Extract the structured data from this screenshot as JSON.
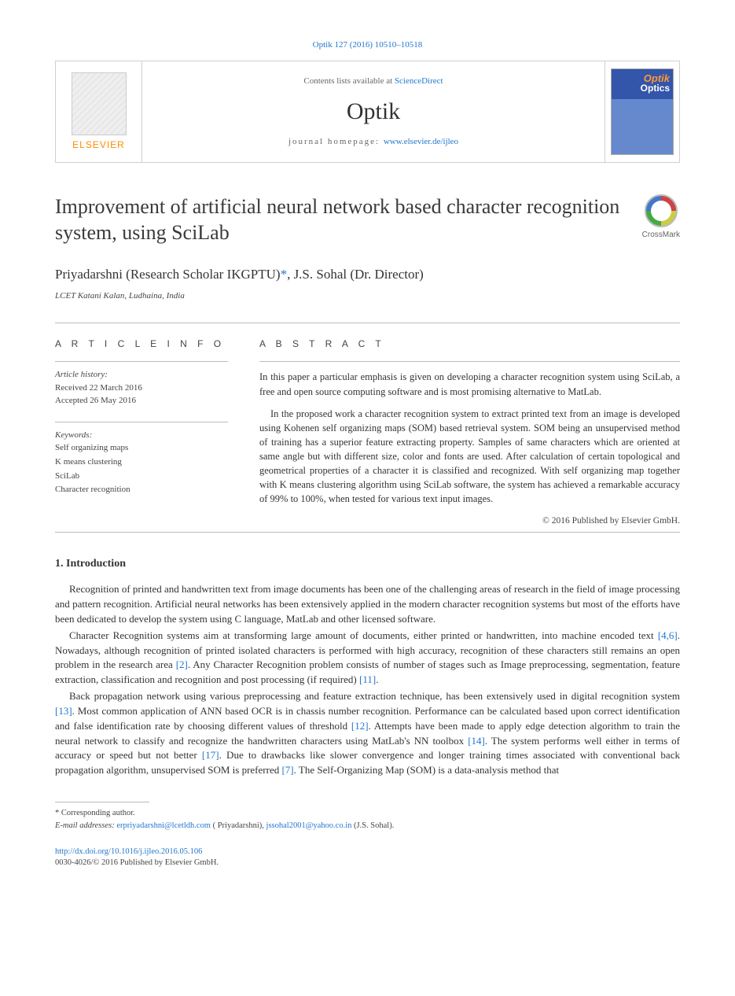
{
  "citation": "Optik 127 (2016) 10510–10518",
  "masthead": {
    "publisher": "ELSEVIER",
    "contentsLine": "Contents lists available at ",
    "contentsLink": "ScienceDirect",
    "journalName": "Optik",
    "homepagePrefix": "journal homepage: ",
    "homepageUrl": "www.elsevier.de/ijleo"
  },
  "title": "Improvement of artificial neural network based character recognition system, using SciLab",
  "crossmark": "CrossMark",
  "authors": "Priyadarshni (Research Scholar IKGPTU)*, J.S. Sohal (Dr. Director)",
  "affiliation": "LCET Katani Kalan, Ludhaina, India",
  "articleInfo": {
    "label": "A R T I C L E    I N F O",
    "historyLabel": "Article history:",
    "received": "Received 22 March 2016",
    "accepted": "Accepted 26 May 2016",
    "keywordsLabel": "Keywords:",
    "keywords": [
      "Self organizing maps",
      "K means clustering",
      "SciLab",
      "Character recognition"
    ]
  },
  "abstract": {
    "label": "A B S T R A C T",
    "p1": "In this paper a particular emphasis is given on developing a character recognition system using SciLab, a free and open source computing software and is most promising alternative to MatLab.",
    "p2": "In the proposed work a character recognition system to extract printed text from an image is developed using Kohenen self organizing maps (SOM) based retrieval system. SOM being an unsupervised method of training has a superior feature extracting property. Samples of same characters which are oriented at same angle but with different size, color and fonts are used. After calculation of certain topological and geometrical properties of a character it is classified and recognized. With self organizing map together with K means clustering algorithm using SciLab software, the system has achieved a remarkable accuracy of 99% to 100%, when tested for various text input images.",
    "copyright": "© 2016 Published by Elsevier GmbH."
  },
  "intro": {
    "heading": "1.  Introduction",
    "p1": "Recognition of printed and handwritten text from image documents has been one of the challenging areas of research in the field of image processing and pattern recognition. Artificial neural networks has been extensively applied in the modern character recognition systems but most of the efforts have been dedicated to develop the system using C language, MatLab and other licensed software.",
    "p2a": "Character Recognition systems aim at transforming large amount of documents, either printed or handwritten, into machine encoded text ",
    "p2r1": "[4,6]",
    "p2b": ". Nowadays, although recognition of printed isolated characters is performed with high accuracy, recognition of these characters still remains an open problem in the research area ",
    "p2r2": "[2]",
    "p2c": ". Any Character Recognition problem consists of number of stages such as Image preprocessing, segmentation, feature extraction, classification and recognition and post processing (if required) ",
    "p2r3": "[11]",
    "p2d": ".",
    "p3a": "Back propagation network using various preprocessing and feature extraction technique, has been extensively used in digital recognition system ",
    "p3r1": "[13]",
    "p3b": ". Most common application of ANN based OCR is in chassis number recognition. Performance can be calculated based upon correct identification and false identification rate by choosing different values of threshold ",
    "p3r2": "[12]",
    "p3c": ". Attempts have been made to apply edge detection algorithm to train the neural network to classify and recognize the handwritten characters using MatLab's NN toolbox ",
    "p3r3": "[14]",
    "p3d": ". The system performs well either in terms of accuracy or speed but not better ",
    "p3r4": "[17]",
    "p3e": ". Due to drawbacks like slower convergence and longer training times associated with conventional back propagation algorithm, unsupervised SOM is preferred ",
    "p3r5": "[7]",
    "p3f": ". The Self-Organizing Map (SOM) is a data-analysis method that"
  },
  "footnotes": {
    "corr": "* Corresponding author.",
    "emailsLabel": "E-mail addresses: ",
    "email1": "erpriyadarshni@lcetldh.com",
    "name1": " ( Priyadarshni), ",
    "email2": "jssohal2001@yahoo.co.in",
    "name2": " (J.S. Sohal)."
  },
  "doi": {
    "url": "http://dx.doi.org/10.1016/j.ijleo.2016.05.106",
    "issn": "0030-4026/© 2016 Published by Elsevier GmbH."
  },
  "colors": {
    "link": "#2277cc",
    "orange": "#ff8c00",
    "text": "#333333",
    "rule": "#bbbbbb"
  }
}
